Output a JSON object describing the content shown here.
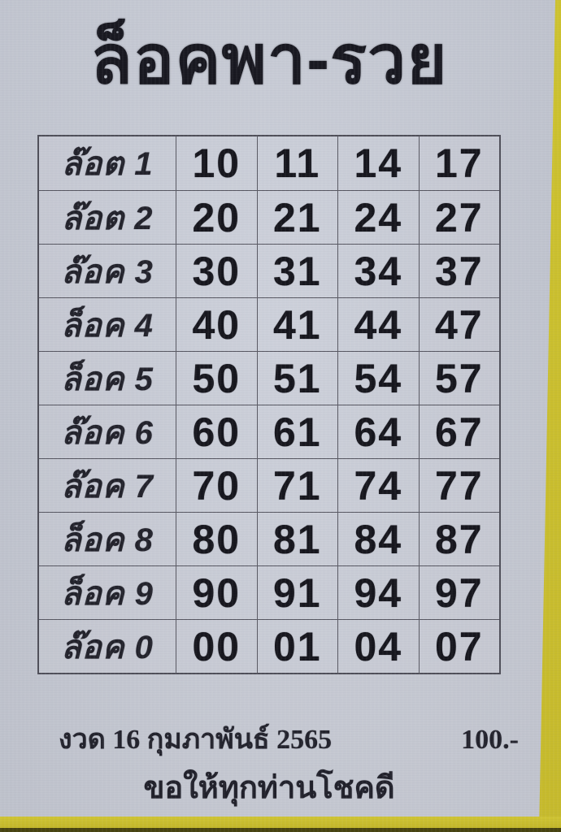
{
  "title": "ล็อคพา-รวย",
  "table": {
    "rows": [
      {
        "label": "ล๊อต 1",
        "values": [
          "10",
          "11",
          "14",
          "17"
        ]
      },
      {
        "label": "ล๊อต 2",
        "values": [
          "20",
          "21",
          "24",
          "27"
        ]
      },
      {
        "label": "ล๊อค 3",
        "values": [
          "30",
          "31",
          "34",
          "37"
        ]
      },
      {
        "label": "ล็อค 4",
        "values": [
          "40",
          "41",
          "44",
          "47"
        ]
      },
      {
        "label": "ล็อค 5",
        "values": [
          "50",
          "51",
          "54",
          "57"
        ]
      },
      {
        "label": "ล๊อค 6",
        "values": [
          "60",
          "61",
          "64",
          "67"
        ]
      },
      {
        "label": "ล๊อค 7",
        "values": [
          "70",
          "71",
          "74",
          "77"
        ]
      },
      {
        "label": "ล็อค 8",
        "values": [
          "80",
          "81",
          "84",
          "87"
        ]
      },
      {
        "label": "ล็อค 9",
        "values": [
          "90",
          "91",
          "94",
          "97"
        ]
      },
      {
        "label": "ล๊อค 0",
        "values": [
          "00",
          "01",
          "04",
          "07"
        ]
      }
    ]
  },
  "footer": {
    "draw_date": "งวด 16 กุมภาพันธ์ 2565",
    "price": "100.-",
    "blessing": "ขอให้ทุกท่านโชคดี"
  },
  "colors": {
    "paper": "#c7cbd6",
    "frame_yellow": "#c9bd2f",
    "frame_dark_edge": "#46420f",
    "table_line": "#55555f",
    "ink": "#16161d"
  }
}
